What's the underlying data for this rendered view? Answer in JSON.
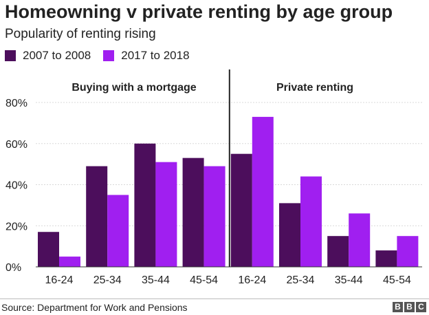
{
  "header": {
    "title": "Homeowning v private renting by age group",
    "subtitle": "Popularity of renting rising"
  },
  "footer": {
    "source": "Source: Department for Work and Pensions",
    "logo_letters": [
      "B",
      "B",
      "C"
    ]
  },
  "colors": {
    "series_2007": "#4c0e5c",
    "series_2017": "#a01ff0",
    "gridline": "#d8d8d8",
    "divider": "#222222",
    "text": "#222222"
  },
  "chart_data": {
    "type": "bar",
    "categories": [
      "16-24",
      "25-34",
      "35-44",
      "45-54",
      "16-24",
      "25-34",
      "35-44",
      "45-54"
    ],
    "groups": [
      {
        "label": "Buying with a mortgage",
        "categories": [
          "16-24",
          "25-34",
          "35-44",
          "45-54"
        ]
      },
      {
        "label": "Private renting",
        "categories": [
          "16-24",
          "25-34",
          "35-44",
          "45-54"
        ]
      }
    ],
    "series": [
      {
        "name": "2007 to 2008",
        "values": [
          17,
          49,
          60,
          53,
          55,
          31,
          15,
          8
        ]
      },
      {
        "name": "2017 to 2018",
        "values": [
          5,
          35,
          51,
          49,
          73,
          44,
          26,
          15
        ]
      }
    ],
    "ylim": [
      0,
      80
    ],
    "yticks": [
      0,
      20,
      40,
      60,
      80
    ],
    "ytick_labels": [
      "0%",
      "20%",
      "40%",
      "60%",
      "80%"
    ],
    "grid": true,
    "legend": "top-left"
  }
}
